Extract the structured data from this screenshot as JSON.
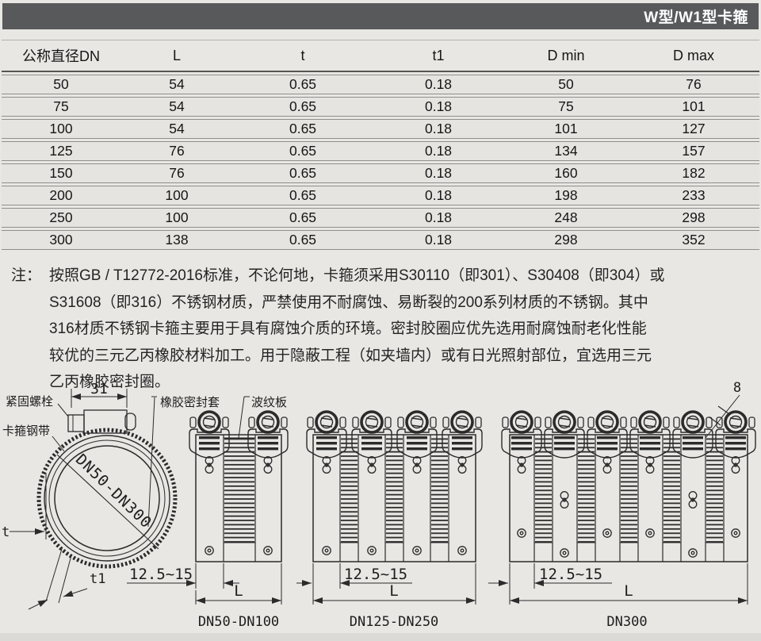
{
  "header": {
    "title": "W型/W1型卡箍"
  },
  "table": {
    "columns": [
      "公称直径DN",
      "L",
      "t",
      "t1",
      "D min",
      "D max"
    ],
    "rows": [
      [
        "50",
        "54",
        "0.65",
        "0.18",
        "50",
        "76"
      ],
      [
        "75",
        "54",
        "0.65",
        "0.18",
        "75",
        "101"
      ],
      [
        "100",
        "54",
        "0.65",
        "0.18",
        "101",
        "127"
      ],
      [
        "125",
        "76",
        "0.65",
        "0.18",
        "134",
        "157"
      ],
      [
        "150",
        "76",
        "0.65",
        "0.18",
        "160",
        "182"
      ],
      [
        "200",
        "100",
        "0.65",
        "0.18",
        "198",
        "233"
      ],
      [
        "250",
        "100",
        "0.65",
        "0.18",
        "248",
        "298"
      ],
      [
        "300",
        "138",
        "0.65",
        "0.18",
        "298",
        "352"
      ]
    ]
  },
  "note": {
    "prefix": "注：",
    "lines": [
      "按照GB / T12772-2016标准，不论何地，卡箍须采用S30110（即301）、S30408（即304）或",
      "S31608（即316）不锈钢材质，严禁使用不耐腐蚀、易断裂的200系列材质的不锈钢。其中",
      "316材质不锈钢卡箍主要用于具有腐蚀介质的环境。密封胶圈应优先选用耐腐蚀耐老化性能",
      "较优的三元乙丙橡胶材料加工。用于隐蔽工程（如夹墙内）或有日光照射部位，宜选用三元",
      "乙丙橡胶密封圈。"
    ]
  },
  "drawings": {
    "labels": {
      "bolt": "紧固螺栓",
      "band": "卡箍钢带",
      "sleeve": "橡胶密封套",
      "plate": "波纹板"
    },
    "dims": {
      "d31": "31",
      "d8": "8",
      "t": "t",
      "t1": "t1",
      "range": "12.5~15",
      "L": "L"
    },
    "diameter_range": "DN50-DN300",
    "captions": {
      "small": "DN50-DN100",
      "medium": "DN125-DN250",
      "large": "DN300"
    }
  },
  "colors": {
    "header_bar": "#58595b",
    "line_color": "#2b2b2b",
    "page_bg": "#e8e7e4"
  }
}
